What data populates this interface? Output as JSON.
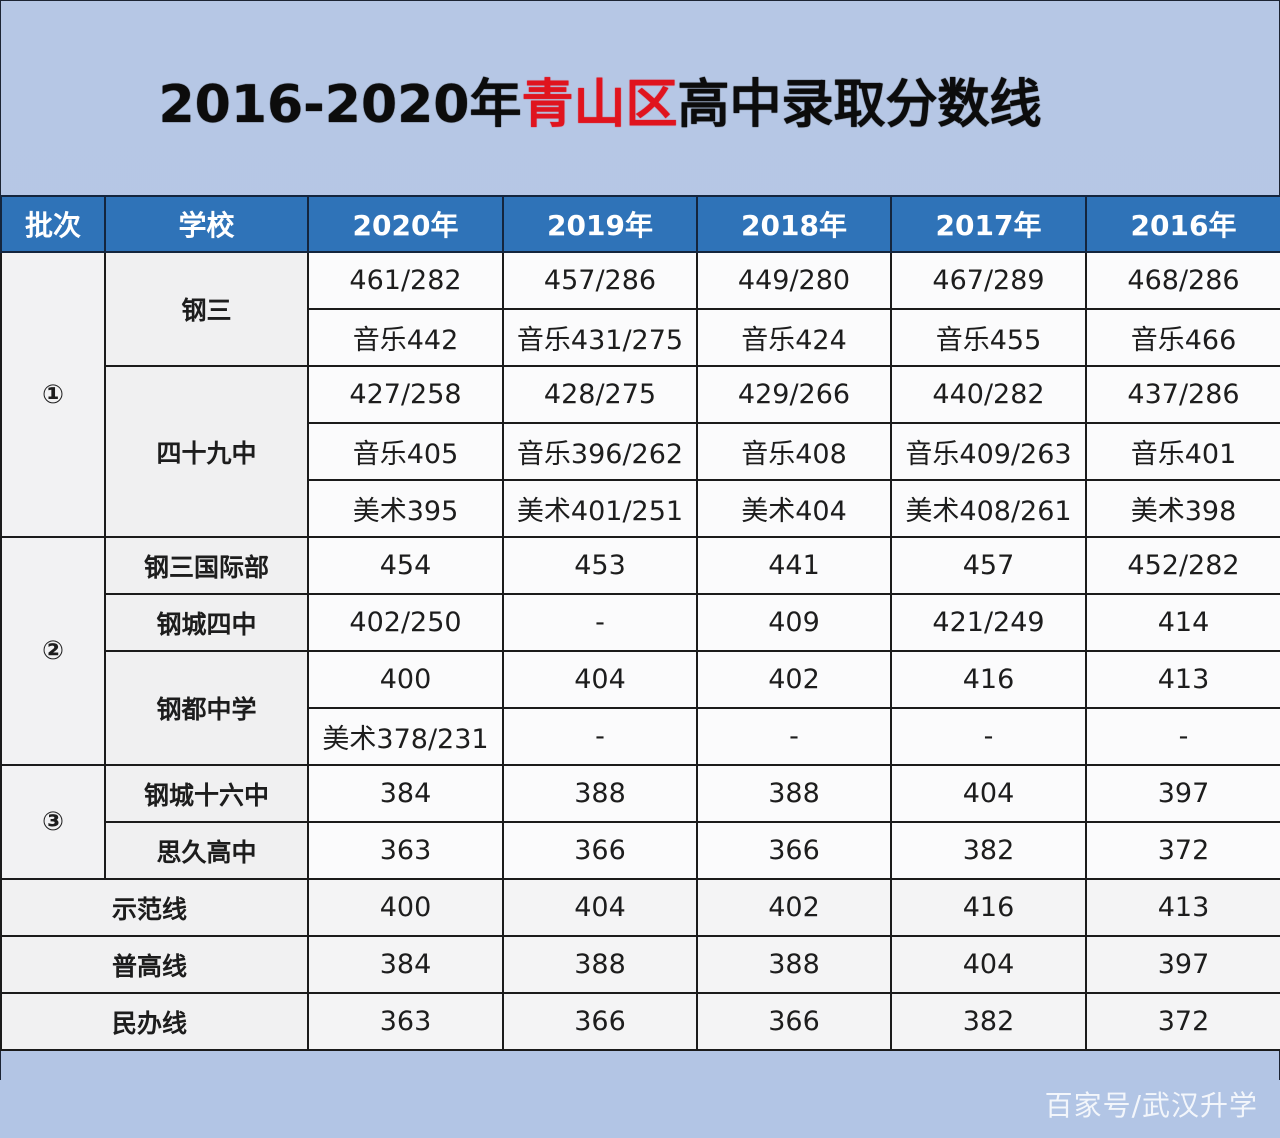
{
  "title": {
    "prefix": "2016-2020年",
    "highlight": "青山区",
    "suffix": "高中录取分数线",
    "highlight_color": "#e0141e"
  },
  "table": {
    "headers": [
      "批次",
      "学校",
      "2020年",
      "2019年",
      "2018年",
      "2017年",
      "2016年"
    ],
    "header_bg": "#2f73b8",
    "batches": [
      {
        "label": "①",
        "schools": [
          {
            "name": "钢三",
            "rows": [
              [
                "461/282",
                "457/286",
                "449/280",
                "467/289",
                "468/286"
              ],
              [
                "音乐442",
                "音乐431/275",
                "音乐424",
                "音乐455",
                "音乐466"
              ]
            ]
          },
          {
            "name": "四十九中",
            "rows": [
              [
                "427/258",
                "428/275",
                "429/266",
                "440/282",
                "437/286"
              ],
              [
                "音乐405",
                "音乐396/262",
                "音乐408",
                "音乐409/263",
                "音乐401"
              ],
              [
                "美术395",
                "美术401/251",
                "美术404",
                "美术408/261",
                "美术398"
              ]
            ]
          }
        ]
      },
      {
        "label": "②",
        "schools": [
          {
            "name": "钢三国际部",
            "rows": [
              [
                "454",
                "453",
                "441",
                "457",
                "452/282"
              ]
            ]
          },
          {
            "name": "钢城四中",
            "rows": [
              [
                "402/250",
                "-",
                "409",
                "421/249",
                "414"
              ]
            ]
          },
          {
            "name": "钢都中学",
            "rows": [
              [
                "400",
                "404",
                "402",
                "416",
                "413"
              ],
              [
                "美术378/231",
                "-",
                "-",
                "-",
                "-"
              ]
            ]
          }
        ]
      },
      {
        "label": "③",
        "schools": [
          {
            "name": "钢城十六中",
            "rows": [
              [
                "384",
                "388",
                "388",
                "404",
                "397"
              ]
            ]
          },
          {
            "name": "思久高中",
            "rows": [
              [
                "363",
                "366",
                "366",
                "382",
                "372"
              ]
            ]
          }
        ]
      }
    ],
    "summary": [
      {
        "label": "示范线",
        "values": [
          "400",
          "404",
          "402",
          "416",
          "413"
        ]
      },
      {
        "label": "普高线",
        "values": [
          "384",
          "388",
          "388",
          "404",
          "397"
        ]
      },
      {
        "label": "民办线",
        "values": [
          "363",
          "366",
          "366",
          "382",
          "372"
        ]
      }
    ]
  },
  "watermark": "百家号/武汉升学"
}
